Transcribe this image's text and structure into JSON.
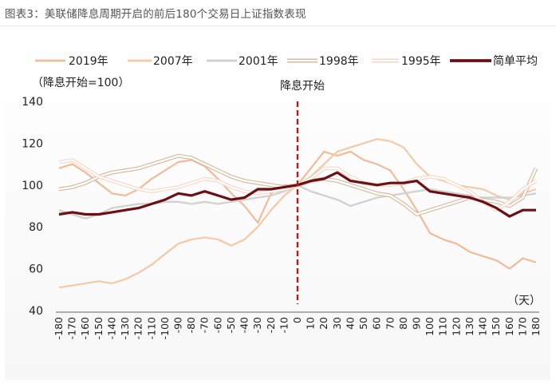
{
  "title": "图表3：美联储降息周期开启的前后180个交易日上证指数表现",
  "chart_data": {
    "type": "line",
    "ylabel": "（降息开始=100）",
    "xlabel": "（天）",
    "annotation": "降息开始",
    "xlim": [
      -180,
      180
    ],
    "ylim": [
      40,
      140
    ],
    "yticks": [
      40,
      60,
      80,
      100,
      120,
      140
    ],
    "xticks": [
      -180,
      -170,
      -160,
      -150,
      -140,
      -130,
      -120,
      -110,
      -100,
      -90,
      -80,
      -70,
      -60,
      -50,
      -40,
      -30,
      -20,
      -10,
      0,
      10,
      20,
      30,
      40,
      50,
      60,
      70,
      80,
      90,
      100,
      110,
      120,
      130,
      140,
      150,
      160,
      170,
      180
    ],
    "x": [
      -180,
      -170,
      -160,
      -150,
      -140,
      -130,
      -120,
      -110,
      -100,
      -90,
      -80,
      -70,
      -60,
      -50,
      -40,
      -30,
      -20,
      -10,
      0,
      10,
      20,
      30,
      40,
      50,
      60,
      70,
      80,
      90,
      100,
      110,
      120,
      130,
      140,
      150,
      160,
      170,
      180
    ],
    "series": [
      {
        "name": "2019年",
        "color": "#f2bb98",
        "width": 2.2,
        "values": [
          108,
          110,
          106,
          101,
          96,
          95,
          98,
          103,
          107,
          111,
          112,
          109,
          103,
          96,
          90,
          82,
          96,
          100,
          100,
          108,
          116,
          114,
          116,
          112,
          110,
          107,
          98,
          88,
          77,
          74,
          72,
          68,
          66,
          64,
          60,
          65,
          63
        ]
      },
      {
        "name": "2007年",
        "color": "#f5c8a6",
        "width": 2.2,
        "values": [
          51,
          52,
          53,
          54,
          53,
          55,
          58,
          62,
          67,
          72,
          74,
          75,
          74,
          71,
          74,
          80,
          88,
          95,
          100,
          104,
          110,
          116,
          118,
          120,
          122,
          121,
          118,
          110,
          104,
          102,
          100,
          99,
          98,
          95,
          93,
          96,
          98
        ]
      },
      {
        "name": "2001年",
        "color": "#d2d2d2",
        "width": 2.4,
        "values": [
          88,
          86,
          84,
          86,
          89,
          90,
          91,
          91,
          92,
          92,
          91,
          92,
          91,
          92,
          93,
          94,
          95,
          97,
          100,
          97,
          95,
          93,
          90,
          92,
          94,
          95,
          96,
          97,
          98,
          97,
          96,
          95,
          94,
          94,
          94,
          95,
          96
        ]
      },
      {
        "name": "1998年",
        "color": "#d9bba0",
        "width": 1.2,
        "double": true,
        "values": [
          98,
          99,
          101,
          104,
          106,
          107,
          108,
          110,
          112,
          114,
          113,
          110,
          107,
          104,
          102,
          101,
          100,
          99,
          100,
          102,
          103,
          102,
          100,
          98,
          96,
          95,
          91,
          86,
          88,
          90,
          92,
          94,
          93,
          92,
          90,
          94,
          108
        ]
      },
      {
        "name": "1995年",
        "color": "#f6d5c5",
        "width": 1.1,
        "double": true,
        "values": [
          111,
          112,
          108,
          104,
          102,
          100,
          98,
          97,
          98,
          99,
          101,
          103,
          102,
          99,
          97,
          96,
          97,
          98,
          100,
          103,
          108,
          108,
          104,
          101,
          100,
          100,
          101,
          103,
          104,
          103,
          100,
          97,
          92,
          88,
          92,
          98,
          102
        ]
      },
      {
        "name": "简单平均",
        "color": "#6b0f15",
        "width": 3.2,
        "values": [
          86,
          87,
          86,
          86,
          87,
          88,
          89,
          91,
          93,
          96,
          95,
          97,
          95,
          93,
          94,
          98,
          98,
          99,
          100,
          102,
          103,
          106,
          102,
          101,
          100,
          101,
          101,
          102,
          97,
          96,
          95,
          94,
          92,
          89,
          85,
          88,
          88
        ]
      }
    ]
  }
}
